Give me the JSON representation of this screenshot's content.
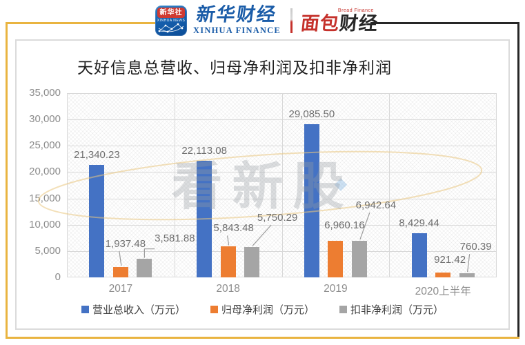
{
  "header": {
    "xinhua_icon": {
      "cn": "新华社",
      "en": "XINHUA NEWS"
    },
    "xinhua_finance": {
      "cn": "新华财经",
      "en": "XINHUA FINANCE"
    },
    "bread_finance": {
      "en": "Bread Finance",
      "cn_red": "面包",
      "cn_dark": "财经"
    }
  },
  "colors": {
    "frame_gold": "#E9B440",
    "frame_dark": "#262626",
    "series_blue": "#4472C4",
    "series_orange": "#ED7D31",
    "series_gray": "#A5A5A5",
    "gridline": "#D9D9D9"
  },
  "chart_data": {
    "type": "bar",
    "title": "天好信息总营收、归母净利润及扣非净利润",
    "watermark": "看新股",
    "categories": [
      "2017",
      "2018",
      "2019",
      "2020上半年"
    ],
    "series": [
      {
        "name": "营业总收入（万元）",
        "color": "#4472C4",
        "values": [
          21340.23,
          22113.08,
          29085.5,
          8429.44
        ],
        "labels": [
          "21,340.23",
          "22,113.08",
          "29,085.50",
          "8,429.44"
        ]
      },
      {
        "name": "归母净利润（万元）",
        "color": "#ED7D31",
        "values": [
          1937.48,
          5843.48,
          6960.16,
          921.42
        ],
        "labels": [
          "1,937.48",
          "5,843.48",
          "6,960.16",
          "921.42"
        ]
      },
      {
        "name": "扣非净利润（万元）",
        "color": "#A5A5A5",
        "values": [
          3581.88,
          5750.29,
          6942.64,
          760.39
        ],
        "labels": [
          "3,581.88",
          "5,750.29",
          "6,942.64",
          "760.39"
        ]
      }
    ],
    "ylim": [
      0,
      35000
    ],
    "ytick_step": 5000,
    "ytick_labels": [
      "0",
      "5,000",
      "10,000",
      "15,000",
      "20,000",
      "25,000",
      "30,000",
      "35,000"
    ],
    "grid": true,
    "legend_position": "bottom"
  }
}
